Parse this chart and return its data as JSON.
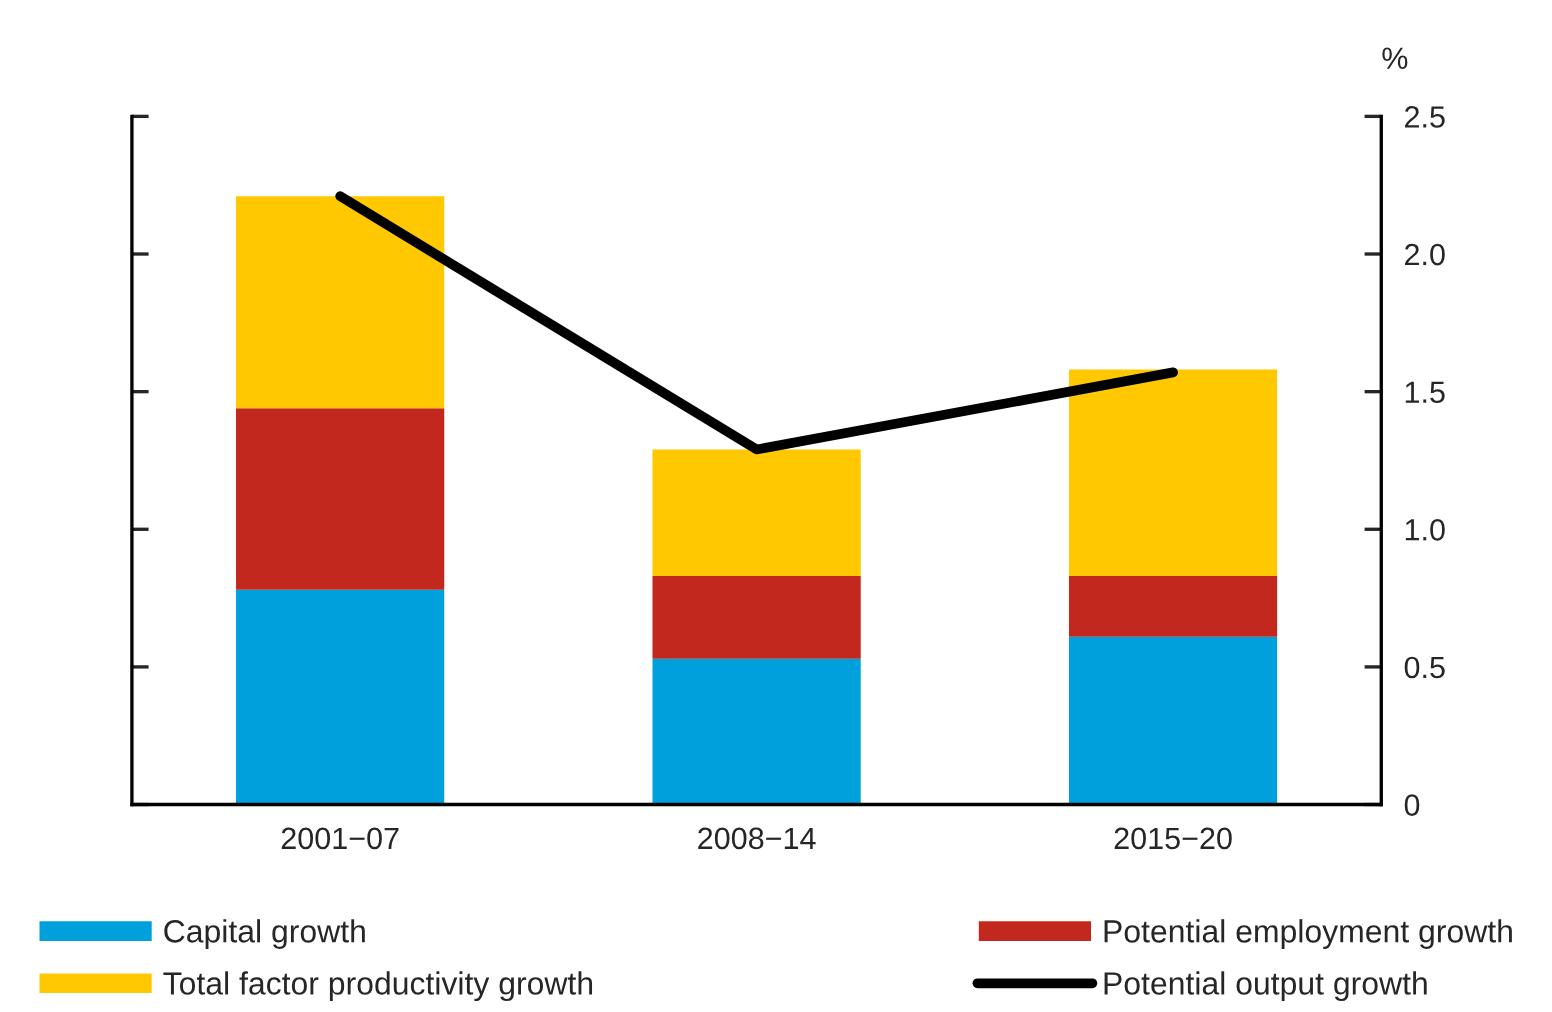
{
  "chart_data": {
    "type": "bar",
    "stacked": true,
    "ylabel": "%",
    "categories": [
      "2001−07",
      "2008−14",
      "2015−20"
    ],
    "series": [
      {
        "name": "Capital growth",
        "color": "#00a0dc",
        "values": [
          0.78,
          0.53,
          0.61
        ]
      },
      {
        "name": "Potential employment growth",
        "color": "#c3281e",
        "values": [
          0.66,
          0.3,
          0.22
        ]
      },
      {
        "name": "Total factor productivity growth",
        "color": "#ffc800",
        "values": [
          0.77,
          0.46,
          0.75
        ]
      },
      {
        "name": "Potential output growth",
        "type": "line",
        "color": "#000000",
        "values": [
          2.21,
          1.29,
          1.57
        ]
      }
    ],
    "ylim": [
      0,
      2.5
    ],
    "yticks": [
      0,
      {
        "value": 0.5,
        "label": "0.5"
      },
      {
        "value": 1,
        "label": "1.0"
      },
      {
        "value": 1.5,
        "label": "1.5"
      },
      {
        "value": 2,
        "label": "2.0"
      },
      {
        "value": 2.5,
        "label": "2.5"
      }
    ],
    "grid": false,
    "legend": "bottom",
    "line_style": "solid",
    "marker": "none"
  }
}
